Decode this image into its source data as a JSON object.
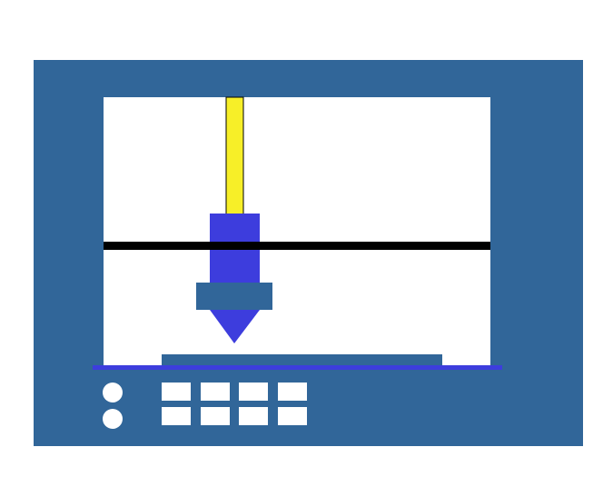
{
  "colors": {
    "background": "#ffffff",
    "frame": "#316699",
    "build_area": "#ffffff",
    "filament": "#f7ef28",
    "extruder": "#3d3ddd",
    "gantry_rail": "#000000",
    "print_bed": "#316699",
    "bed_base_line": "#3d3ddd",
    "control_button": "#ffffff",
    "control_key": "#ffffff"
  },
  "icons": {
    "frame": "printer-frame",
    "filament": "filament-icon",
    "extruder": "extruder-icon",
    "nozzle": "nozzle-icon",
    "gantry": "gantry-rail",
    "bed": "print-bed",
    "buttons": "round-button-icon",
    "keys": "keypad-key-icon"
  },
  "control_panel": {
    "round_button_count": 2,
    "key_rows": 2,
    "keys_per_row": 4
  }
}
